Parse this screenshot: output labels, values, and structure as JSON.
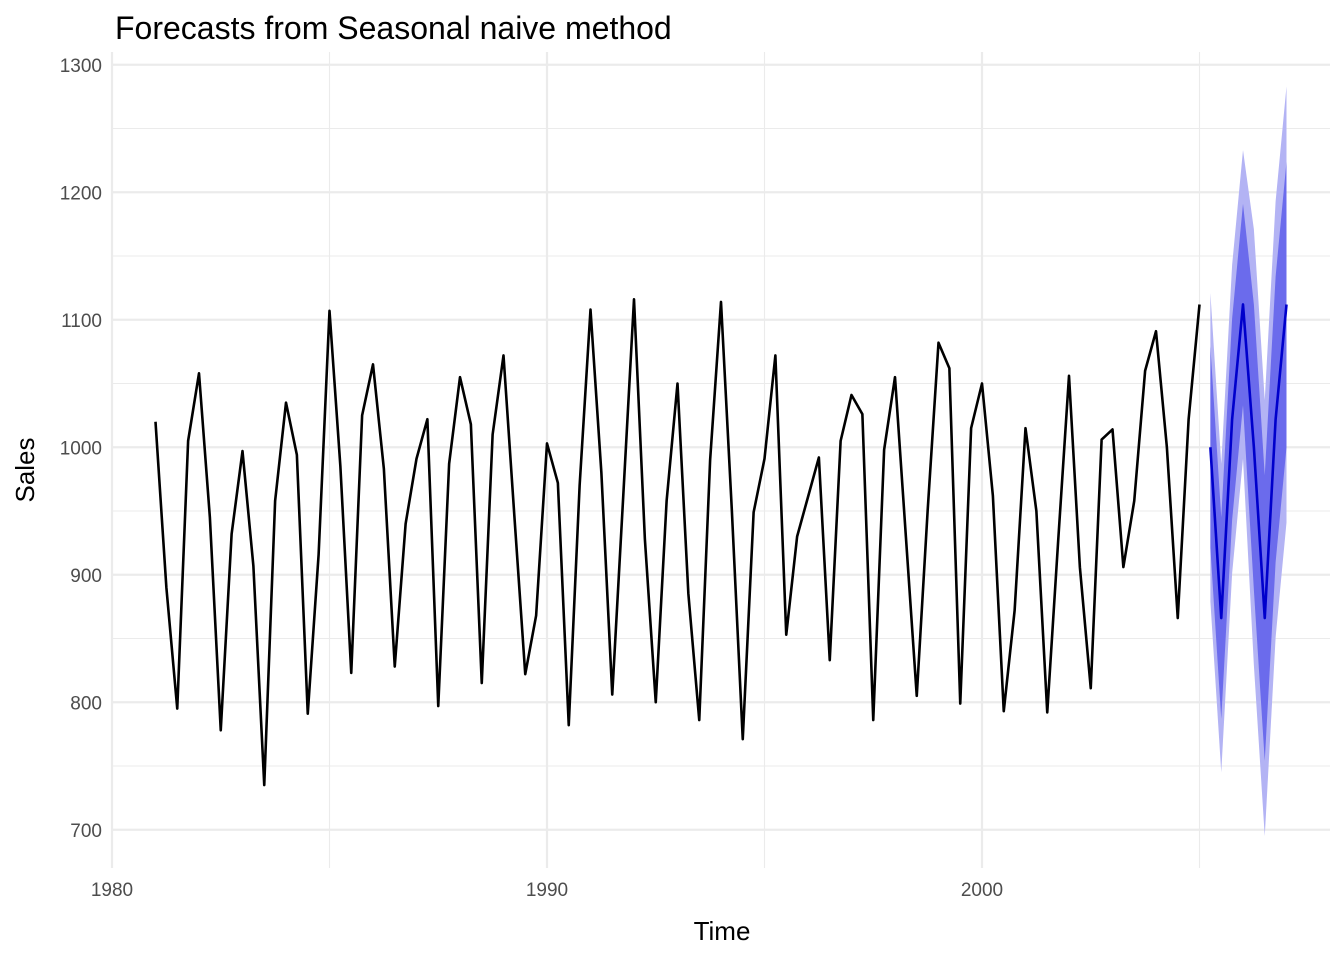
{
  "chart_data": {
    "type": "line",
    "title": "Forecasts from Seasonal naive method",
    "xlabel": "Time",
    "ylabel": "Sales",
    "xlim": [
      1980,
      2008
    ],
    "ylim": [
      670,
      1310
    ],
    "x_ticks": [
      1980,
      1990,
      2000
    ],
    "x_minor_ticks": [
      1985,
      1995,
      2005
    ],
    "y_ticks": [
      700,
      800,
      900,
      1000,
      1100,
      1200,
      1300
    ],
    "y_minor_ticks": [
      750,
      850,
      950,
      1050,
      1150,
      1250
    ],
    "grid": true,
    "frequency": 4,
    "series": [
      {
        "role": "observed",
        "color": "#000000",
        "start": 1981,
        "values": [
          1020,
          890,
          795,
          1005,
          1058,
          945,
          778,
          932,
          997,
          907,
          735,
          958,
          1035,
          994,
          791,
          916,
          1107,
          985,
          823,
          1025,
          1065,
          983,
          828,
          940,
          991,
          1022,
          797,
          987,
          1055,
          1018,
          815,
          1010,
          1072,
          946,
          822,
          868,
          1003,
          972,
          782,
          970,
          1108,
          980,
          806,
          960,
          1116,
          928,
          800,
          958,
          1050,
          885,
          786,
          990,
          1114,
          950,
          771,
          949,
          991,
          1072,
          853,
          930,
          961,
          992,
          833,
          1005,
          1041,
          1026,
          786,
          998,
          1055,
          930,
          805,
          950,
          1082,
          1062,
          799,
          1015,
          1050,
          962,
          793,
          872,
          1015,
          950,
          792,
          926,
          1056,
          906,
          811,
          1006,
          1014,
          906,
          958,
          1060,
          1091,
          1000,
          866,
          1022,
          1112
        ]
      },
      {
        "role": "forecast",
        "color": "#0000cc",
        "start": 2005.25,
        "values": [
          1000,
          866,
          1022,
          1112,
          1000,
          866,
          1022,
          1112
        ],
        "lo80": [
          921,
          787,
          943,
          1033,
          888,
          754,
          910,
          1000
        ],
        "hi80": [
          1079,
          945,
          1101,
          1191,
          1112,
          978,
          1134,
          1224
        ],
        "lo95": [
          879,
          745,
          901,
          991,
          829,
          695,
          851,
          941
        ],
        "hi95": [
          1121,
          987,
          1143,
          1233,
          1171,
          1037,
          1193,
          1283
        ],
        "color_80": "#6b6bec",
        "color_95": "#b3b3f4"
      }
    ]
  }
}
